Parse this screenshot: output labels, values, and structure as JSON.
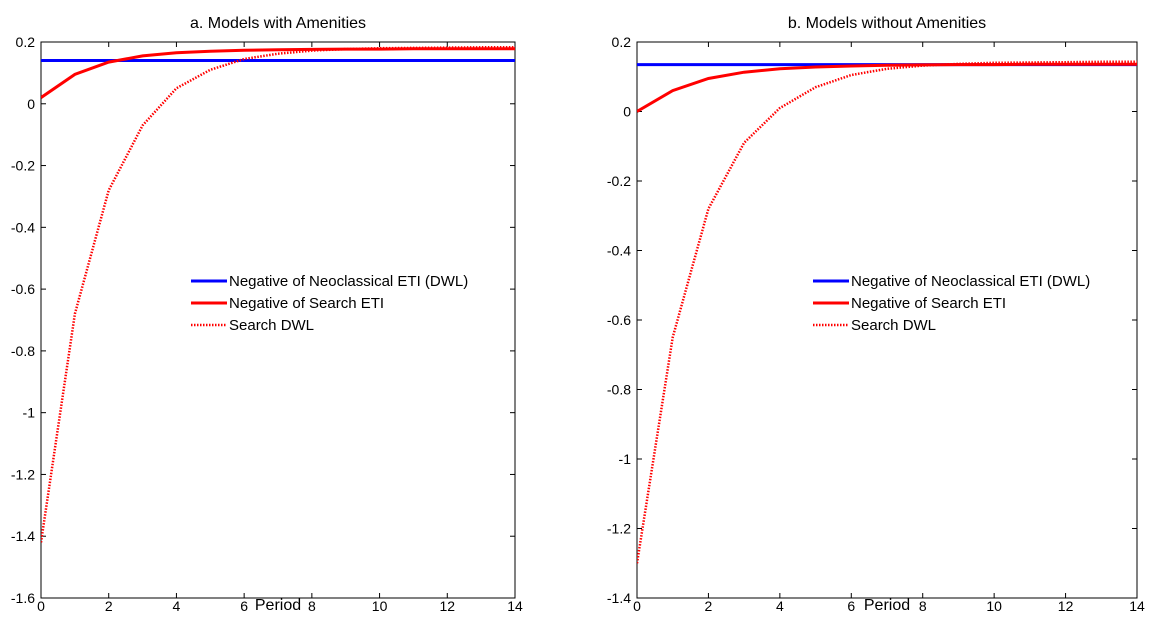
{
  "chart_data": [
    {
      "type": "line",
      "title": "a. Models with Amenities",
      "xlabel": "Period",
      "ylabel": "",
      "xlim": [
        0,
        14
      ],
      "ylim": [
        -1.6,
        0.2
      ],
      "xticks": [
        "0",
        "2",
        "4",
        "6",
        "8",
        "10",
        "12",
        "14"
      ],
      "yticks": [
        "0.2",
        "0",
        "-0.2",
        "-0.4",
        "-0.6",
        "-0.8",
        "-1",
        "-1.2",
        "-1.4",
        "-1.6"
      ],
      "grid": false,
      "legend_position": "right",
      "x": [
        0,
        1,
        2,
        3,
        4,
        5,
        6,
        7,
        8,
        9,
        10,
        11,
        12,
        13,
        14
      ],
      "series": [
        {
          "name": "Negative of Neoclassical ETI (DWL)",
          "color": "#0000ff",
          "style": "solid",
          "values": [
            0.14,
            0.14,
            0.14,
            0.14,
            0.14,
            0.14,
            0.14,
            0.14,
            0.14,
            0.14,
            0.14,
            0.14,
            0.14,
            0.14,
            0.14
          ]
        },
        {
          "name": "Negative of Search ETI",
          "color": "#ff0000",
          "style": "solid",
          "values": [
            0.02,
            0.095,
            0.135,
            0.155,
            0.165,
            0.17,
            0.173,
            0.175,
            0.176,
            0.177,
            0.177,
            0.178,
            0.178,
            0.178,
            0.178
          ]
        },
        {
          "name": "Search DWL",
          "color": "#ff0000",
          "style": "dotted",
          "values": [
            -1.42,
            -0.68,
            -0.28,
            -0.07,
            0.05,
            0.11,
            0.145,
            0.162,
            0.172,
            0.177,
            0.18,
            0.181,
            0.182,
            0.183,
            0.183
          ]
        }
      ]
    },
    {
      "type": "line",
      "title": "b. Models without Amenities",
      "xlabel": "Period",
      "ylabel": "",
      "xlim": [
        0,
        14
      ],
      "ylim": [
        -1.4,
        0.2
      ],
      "xticks": [
        "0",
        "2",
        "4",
        "6",
        "8",
        "10",
        "12",
        "14"
      ],
      "yticks": [
        "0.2",
        "0",
        "-0.2",
        "-0.4",
        "-0.6",
        "-0.8",
        "-1",
        "-1.2",
        "-1.4"
      ],
      "grid": false,
      "legend_position": "right",
      "x": [
        0,
        1,
        2,
        3,
        4,
        5,
        6,
        7,
        8,
        9,
        10,
        11,
        12,
        13,
        14
      ],
      "series": [
        {
          "name": "Negative of Neoclassical ETI (DWL)",
          "color": "#0000ff",
          "style": "solid",
          "values": [
            0.135,
            0.135,
            0.135,
            0.135,
            0.135,
            0.135,
            0.135,
            0.135,
            0.135,
            0.135,
            0.135,
            0.135,
            0.135,
            0.135,
            0.135
          ]
        },
        {
          "name": "Negative of Search ETI",
          "color": "#ff0000",
          "style": "solid",
          "values": [
            0.0,
            0.06,
            0.095,
            0.113,
            0.123,
            0.128,
            0.131,
            0.133,
            0.134,
            0.135,
            0.135,
            0.136,
            0.136,
            0.136,
            0.136
          ]
        },
        {
          "name": "Search DWL",
          "color": "#ff0000",
          "style": "dotted",
          "values": [
            -1.3,
            -0.65,
            -0.28,
            -0.09,
            0.01,
            0.07,
            0.105,
            0.123,
            0.132,
            0.137,
            0.14,
            0.141,
            0.142,
            0.143,
            0.143
          ]
        }
      ]
    }
  ]
}
